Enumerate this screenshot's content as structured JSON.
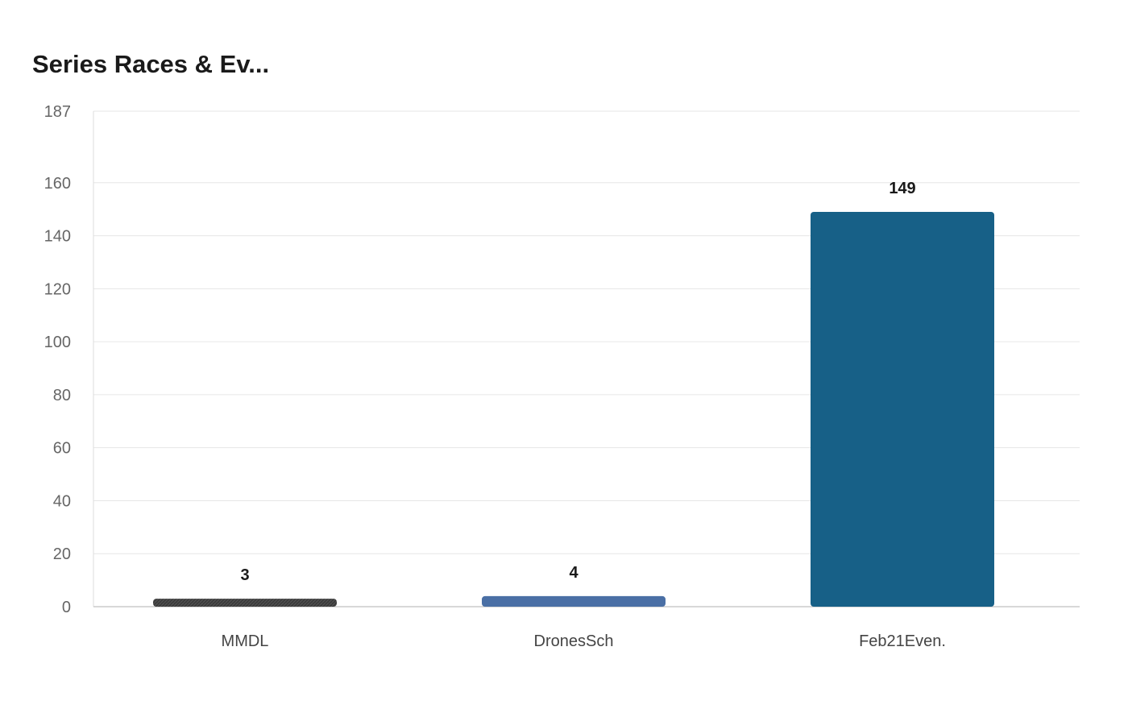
{
  "chart_data": {
    "type": "bar",
    "title": "Series Races & Ev...",
    "xlabel": "",
    "ylabel": "",
    "categories": [
      "MMDL",
      "DronesSch",
      "Feb21Even."
    ],
    "values": [
      3,
      4,
      149
    ],
    "bar_colors": [
      "#3a3a3a",
      "#4a6fa5",
      "#176087"
    ],
    "ylim": [
      0,
      187
    ],
    "yticks": [
      0,
      20,
      40,
      60,
      80,
      100,
      120,
      140,
      160,
      187
    ],
    "grid": true,
    "legend": "none",
    "data_labels": true
  }
}
